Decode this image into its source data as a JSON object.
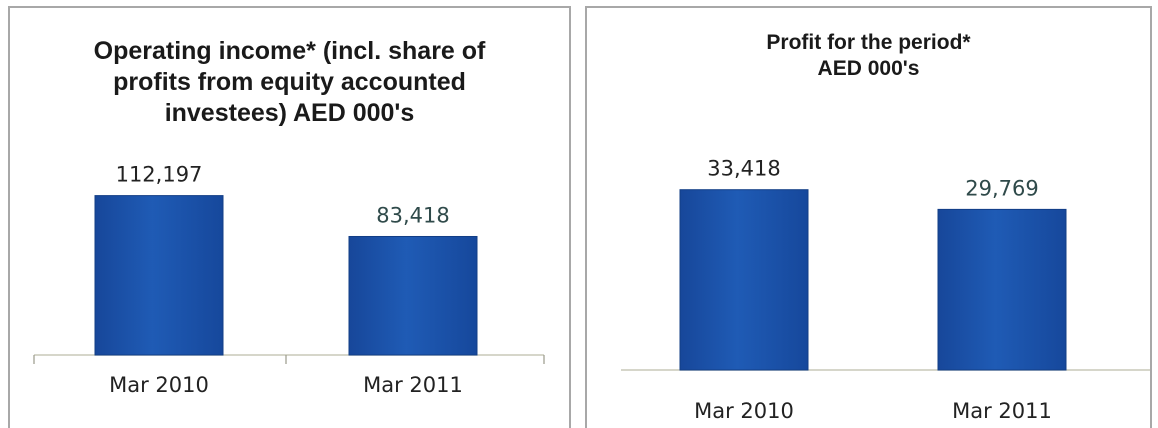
{
  "chart_data": [
    {
      "type": "bar",
      "title_lines": [
        "Operating income* (incl. share of",
        "profits from equity accounted",
        "investees) AED 000's"
      ],
      "categories": [
        "Mar 2010",
        "Mar 2011"
      ],
      "values": [
        112197,
        83418
      ],
      "value_labels": [
        "112,197",
        "83,418"
      ],
      "ylim": [
        0,
        145000
      ],
      "grid": false,
      "legend": "none",
      "bar_color": "#1f5bb5"
    },
    {
      "type": "bar",
      "title_lines": [
        "Profit for the period*",
        "AED 000's"
      ],
      "categories": [
        "Mar 2010",
        "Mar 2011"
      ],
      "values": [
        33418,
        29769
      ],
      "value_labels": [
        "33,418",
        "29,769"
      ],
      "ylim": [
        0,
        43000
      ],
      "grid": false,
      "legend": "none",
      "bar_color": "#1f5bb5"
    }
  ]
}
